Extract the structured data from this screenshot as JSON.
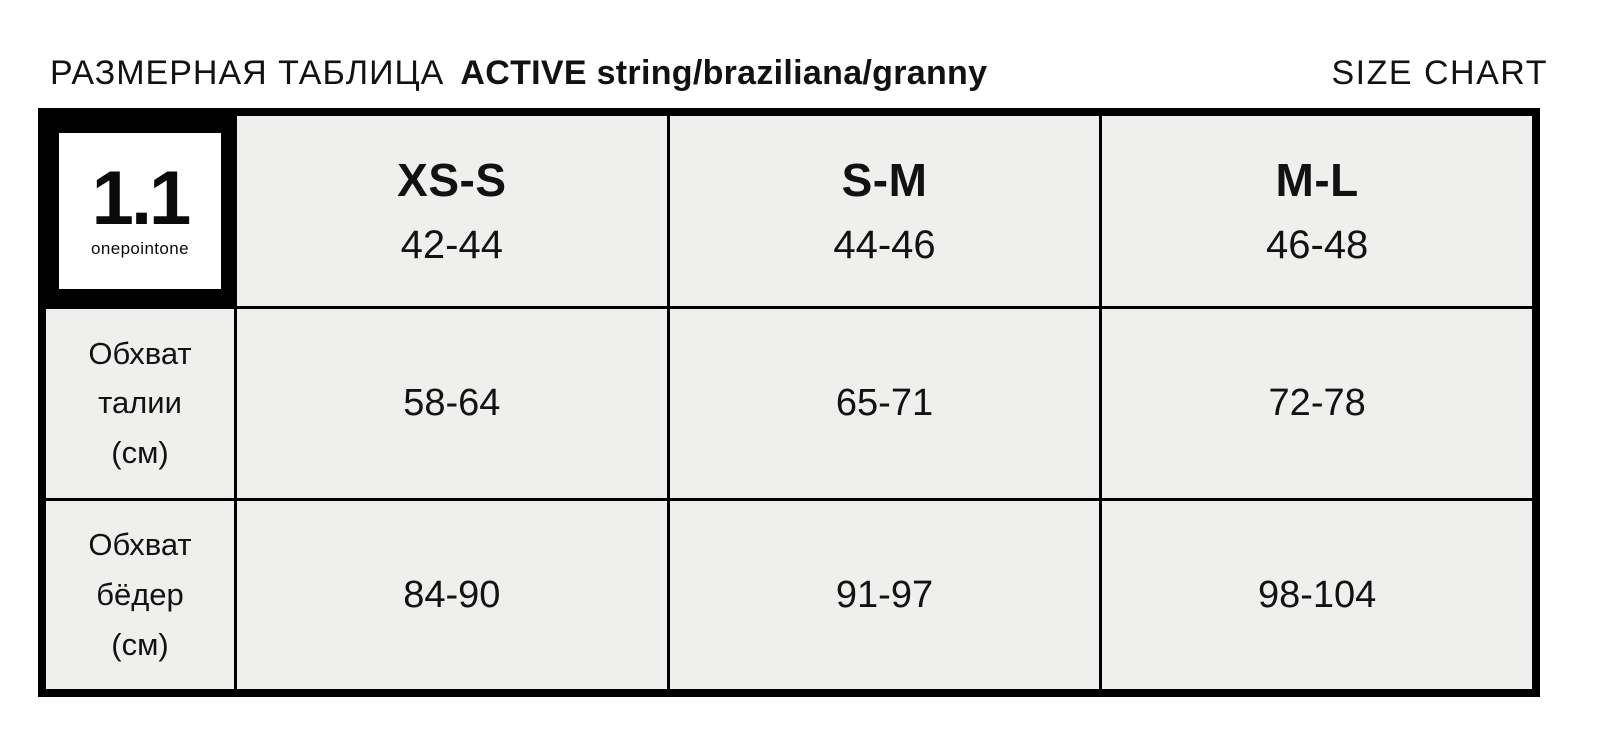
{
  "header": {
    "title_ru": "РАЗМЕРНАЯ ТАБЛИЦА",
    "title_product": "ACTIVE string/braziliana/granny",
    "title_en": "SIZE CHART"
  },
  "logo": {
    "mark": "1.1",
    "name": "onepointone"
  },
  "chart_data": {
    "type": "table",
    "title": "РАЗМЕРНАЯ ТАБЛИЦА ACTIVE string/braziliana/granny",
    "columns": [
      {
        "size": "XS-S",
        "ru_size": "42-44"
      },
      {
        "size": "S-M",
        "ru_size": "44-46"
      },
      {
        "size": "M-L",
        "ru_size": "46-48"
      }
    ],
    "rows": [
      {
        "label": "Обхват\nталии\n(см)",
        "values": [
          "58-64",
          "65-71",
          "72-78"
        ]
      },
      {
        "label": "Обхват\nбёдер\n(см)",
        "values": [
          "84-90",
          "91-97",
          "98-104"
        ]
      }
    ]
  }
}
